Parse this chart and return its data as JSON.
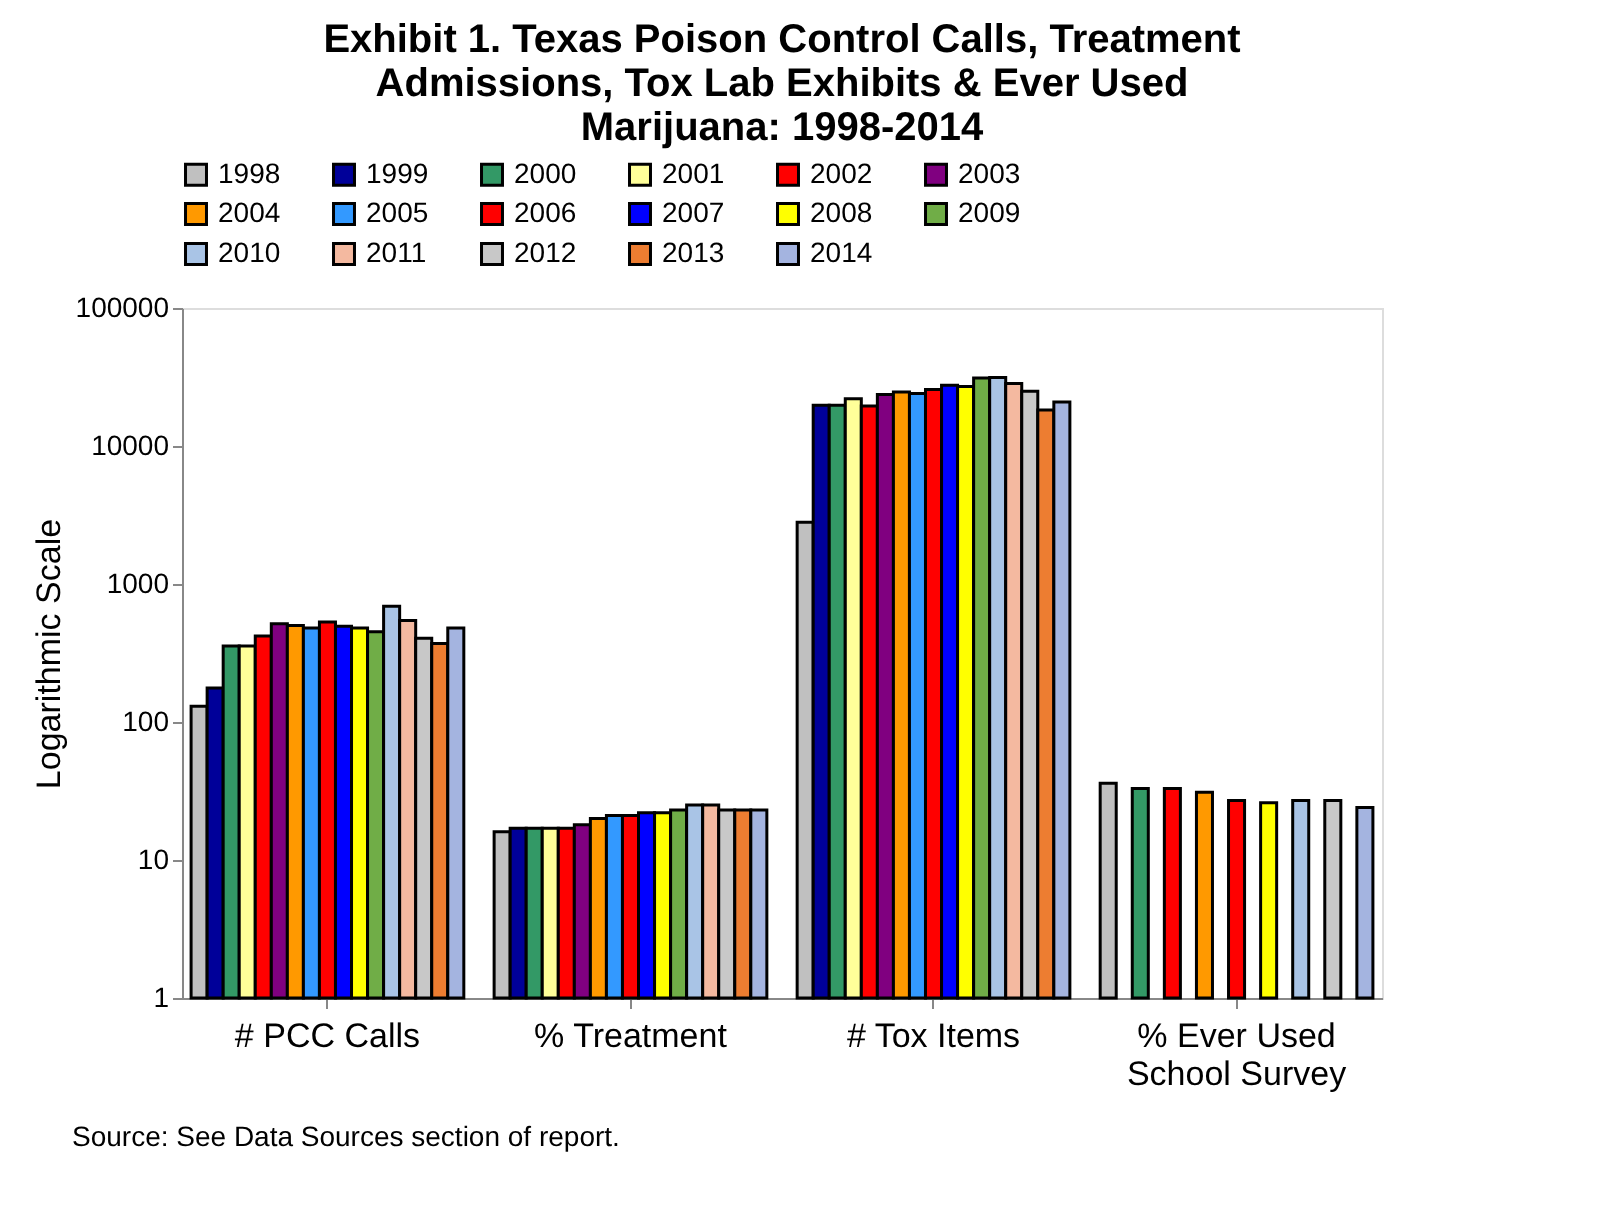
{
  "chart_data": {
    "type": "bar",
    "title": "Exhibit 1. Texas Poison Control Calls, Treatment Admissions, Tox Lab Exhibits & Ever Used Marijuana: 1998-2014",
    "ylabel": "Logarithmic Scale",
    "categories": [
      "# PCC Calls",
      "% Treatment",
      "# Tox Items",
      "% Ever Used School Survey"
    ],
    "log": true,
    "ylim": [
      1,
      100000
    ],
    "yticks": [
      1,
      10,
      100,
      1000,
      10000,
      100000
    ],
    "grid": false,
    "legend": "top",
    "annotations": [
      "Source: See Data Sources section of report."
    ],
    "series": [
      {
        "name": "1998",
        "color": "#c0c0c0",
        "values": [
          130,
          16,
          2800,
          36
        ]
      },
      {
        "name": "1999",
        "color": "#000099",
        "values": [
          176,
          17,
          19700,
          null
        ]
      },
      {
        "name": "2000",
        "color": "#339966",
        "values": [
          355,
          17,
          19700,
          33
        ]
      },
      {
        "name": "2001",
        "color": "#ffff99",
        "values": [
          355,
          17,
          22000,
          null
        ]
      },
      {
        "name": "2002",
        "color": "#ff0000",
        "values": [
          420,
          17,
          19500,
          33
        ]
      },
      {
        "name": "2003",
        "color": "#800080",
        "values": [
          515,
          18,
          23600,
          null
        ]
      },
      {
        "name": "2004",
        "color": "#ff9900",
        "values": [
          500,
          20,
          24600,
          31
        ]
      },
      {
        "name": "2005",
        "color": "#3399ff",
        "values": [
          480,
          21,
          24000,
          null
        ]
      },
      {
        "name": "2006",
        "color": "#ff0000",
        "values": [
          530,
          21,
          25700,
          27
        ]
      },
      {
        "name": "2007",
        "color": "#0000ff",
        "values": [
          495,
          22,
          27500,
          null
        ]
      },
      {
        "name": "2008",
        "color": "#ffff00",
        "values": [
          480,
          22,
          27000,
          26
        ]
      },
      {
        "name": "2009",
        "color": "#70ad47",
        "values": [
          450,
          23,
          31100,
          null
        ]
      },
      {
        "name": "2010",
        "color": "#a9c4e6",
        "values": [
          690,
          25,
          31400,
          27
        ]
      },
      {
        "name": "2011",
        "color": "#f4b9a0",
        "values": [
          545,
          25,
          28400,
          null
        ]
      },
      {
        "name": "2012",
        "color": "#c8c8c8",
        "values": [
          405,
          23,
          24900,
          27
        ]
      },
      {
        "name": "2013",
        "color": "#ed7d31",
        "values": [
          370,
          23,
          18200,
          null
        ]
      },
      {
        "name": "2014",
        "color": "#a4b4e0",
        "values": [
          480,
          23,
          20800,
          24
        ]
      }
    ]
  }
}
